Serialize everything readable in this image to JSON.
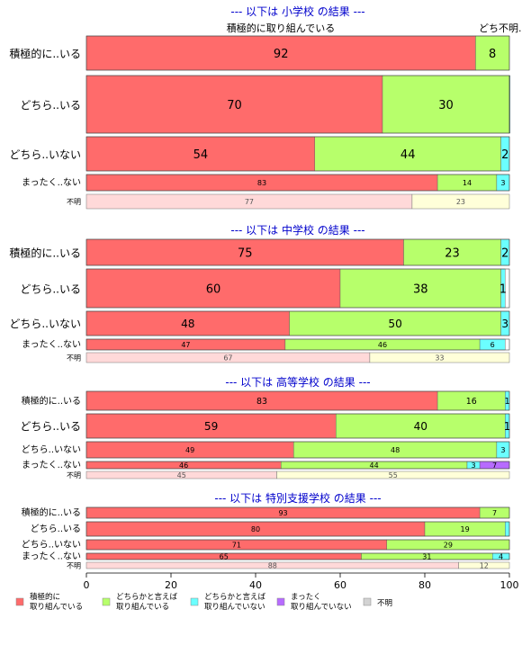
{
  "chart_data": {
    "type": "bar",
    "stacked": "horizontal-percent",
    "header_label": "積極的に取り組んでいる",
    "header_extra": "どち不明..",
    "legend_items": [
      {
        "label": "積極的に\n取り組んでいる",
        "color": "#ff6b6b"
      },
      {
        "label": "どちらかと言えば\n取り組んでいる",
        "color": "#b7ff6b"
      },
      {
        "label": "どちらかと言えば\n取り組んでいない",
        "color": "#6bffff"
      },
      {
        "label": "まったく\n取り組んでいない",
        "color": "#b76bff"
      },
      {
        "label": "不明",
        "color": "#d3d3d3"
      }
    ],
    "xaxis": {
      "ticks": [
        0,
        20,
        40,
        60,
        80,
        100
      ],
      "range": [
        0,
        100
      ]
    },
    "panels": [
      {
        "title": "--- 以下は 小学校 の結果 ---",
        "rows": [
          {
            "label": "積極的に..いる",
            "values": [
              92,
              8,
              0,
              0
            ],
            "labels": [
              "92",
              "8",
              "",
              ""
            ]
          },
          {
            "label": "どちら..いる",
            "values": [
              70,
              30,
              0.5,
              0
            ],
            "labels": [
              "70",
              "30",
              "",
              ""
            ]
          },
          {
            "label": "どちら..いない",
            "values": [
              54,
              44,
              2,
              0
            ],
            "labels": [
              "54",
              "44",
              "2",
              ""
            ]
          },
          {
            "label": "まったく..ない",
            "values": [
              83,
              14,
              3,
              0
            ],
            "labels": [
              "83",
              "14",
              "3",
              ""
            ]
          }
        ],
        "unknown": {
          "label": "不明",
          "values": [
            77,
            23
          ],
          "labels": [
            "77",
            "23"
          ]
        }
      },
      {
        "title": "--- 以下は 中学校 の結果 ---",
        "rows": [
          {
            "label": "積極的に..いる",
            "values": [
              75,
              23,
              2,
              0
            ],
            "labels": [
              "75",
              "23",
              "2",
              ""
            ]
          },
          {
            "label": "どちら..いる",
            "values": [
              60,
              38,
              1,
              0
            ],
            "labels": [
              "60",
              "38",
              "1",
              ""
            ]
          },
          {
            "label": "どちら..いない",
            "values": [
              48,
              50,
              3,
              0
            ],
            "labels": [
              "48",
              "50",
              "3",
              ""
            ]
          },
          {
            "label": "まったく..ない",
            "values": [
              47,
              46,
              6,
              0
            ],
            "labels": [
              "47",
              "46",
              "6",
              ""
            ]
          }
        ],
        "unknown": {
          "label": "不明",
          "values": [
            67,
            33
          ],
          "labels": [
            "67",
            "33"
          ]
        }
      },
      {
        "title": "--- 以下は 高等学校 の結果 ---",
        "rows": [
          {
            "label": "積極的に..いる",
            "values": [
              83,
              16,
              1,
              0
            ],
            "labels": [
              "83",
              "16",
              "1",
              ""
            ]
          },
          {
            "label": "どちら..いる",
            "values": [
              59,
              40,
              1,
              0
            ],
            "labels": [
              "59",
              "40",
              "1",
              ""
            ]
          },
          {
            "label": "どちら..いない",
            "values": [
              49,
              48,
              3,
              0
            ],
            "labels": [
              "49",
              "48",
              "3",
              ""
            ]
          },
          {
            "label": "まったく..ない",
            "values": [
              46,
              44,
              3,
              7
            ],
            "labels": [
              "46",
              "44",
              "3",
              "7"
            ]
          }
        ],
        "unknown": {
          "label": "不明",
          "values": [
            45,
            55
          ],
          "labels": [
            "45",
            "55"
          ]
        }
      },
      {
        "title": "--- 以下は 特別支援学校 の結果 ---",
        "rows": [
          {
            "label": "積極的に..いる",
            "values": [
              93,
              7,
              0,
              0
            ],
            "labels": [
              "93",
              "7",
              "",
              ""
            ]
          },
          {
            "label": "どちら..いる",
            "values": [
              80,
              19,
              1,
              0
            ],
            "labels": [
              "80",
              "19",
              "",
              ""
            ]
          },
          {
            "label": "どちら..いない",
            "values": [
              71,
              29,
              0,
              0
            ],
            "labels": [
              "71",
              "29",
              "",
              ""
            ]
          },
          {
            "label": "まったく..ない",
            "values": [
              65,
              31,
              4,
              0
            ],
            "labels": [
              "65",
              "31",
              "4",
              ""
            ]
          }
        ],
        "unknown": {
          "label": "不明",
          "values": [
            88,
            12
          ],
          "labels": [
            "88",
            "12"
          ]
        }
      }
    ],
    "colors": {
      "main": [
        "#ff6b6b",
        "#b7ff6b",
        "#6bffff",
        "#b76bff"
      ],
      "unknown": [
        "#ffd9d9",
        "#ffffd9"
      ],
      "title": "#0000cc"
    }
  }
}
